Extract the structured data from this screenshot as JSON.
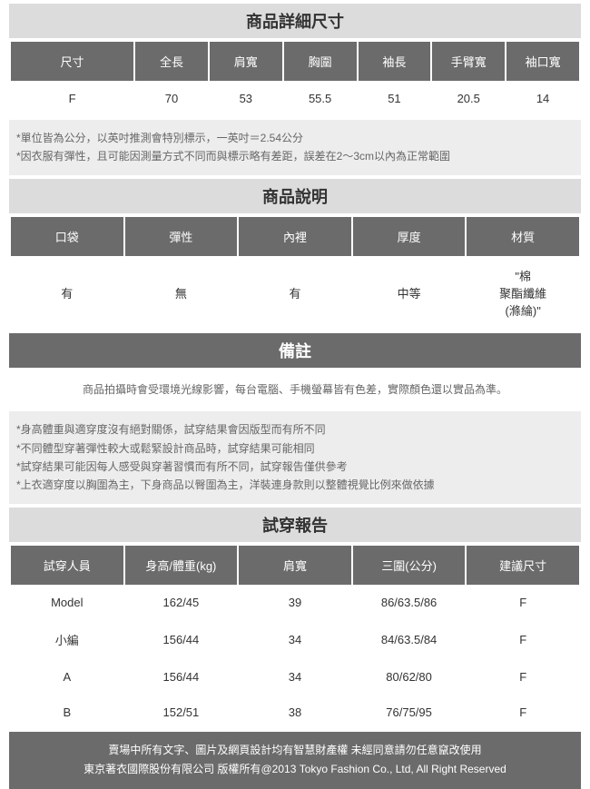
{
  "dimensions": {
    "title": "商品詳細尺寸",
    "headers": [
      "尺寸",
      "全長",
      "肩寬",
      "胸圍",
      "袖長",
      "手臂寬",
      "袖口寬"
    ],
    "rows": [
      [
        "F",
        "70",
        "53",
        "55.5",
        "51",
        "20.5",
        "14"
      ]
    ],
    "notes": [
      "*單位皆為公分，以英吋推測會特別標示，一英吋＝2.54公分",
      "*因衣服有彈性，且可能因測量方式不同而與標示略有差距，誤差在2～3cm以內為正常範圍"
    ]
  },
  "description": {
    "title": "商品說明",
    "headers": [
      "口袋",
      "彈性",
      "內裡",
      "厚度",
      "材質"
    ],
    "rows": [
      [
        "有",
        "無",
        "有",
        "中等",
        "\"棉\n聚酯纖維\n(滌綸)\""
      ]
    ]
  },
  "remarks": {
    "title": "備註",
    "line1": "商品拍攝時會受環境光線影響，每台電腦、手機螢幕皆有色差，實際顏色還以實品為準。",
    "notes": [
      "*身高體重與適穿度沒有絕對關係，試穿結果會因版型而有所不同",
      "*不同體型穿著彈性較大或鬆緊設計商品時，試穿結果可能相同",
      "*試穿結果可能因每人感受與穿著習慣而有所不同，試穿報告僅供參考",
      "*上衣適穿度以胸圍為主，下身商品以臀圍為主，洋裝連身款則以整體視覺比例來做依據"
    ]
  },
  "fitting": {
    "title": "試穿報告",
    "headers": [
      "試穿人員",
      "身高/體重(kg)",
      "肩寬",
      "三圍(公分)",
      "建議尺寸"
    ],
    "rows": [
      [
        "Model",
        "162/45",
        "39",
        "86/63.5/86",
        "F"
      ],
      [
        "小編",
        "156/44",
        "34",
        "84/63.5/84",
        "F"
      ],
      [
        "A",
        "156/44",
        "34",
        "80/62/80",
        "F"
      ],
      [
        "B",
        "152/51",
        "38",
        "76/75/95",
        "F"
      ]
    ]
  },
  "footer": {
    "line1": "賣場中所有文字、圖片及網頁設計均有智慧財產權 未經同意請勿任意竄改使用",
    "line2": "東京著衣國際股份有限公司 版權所有@2013 Tokyo Fashion Co., Ltd, All Right Reserved"
  }
}
